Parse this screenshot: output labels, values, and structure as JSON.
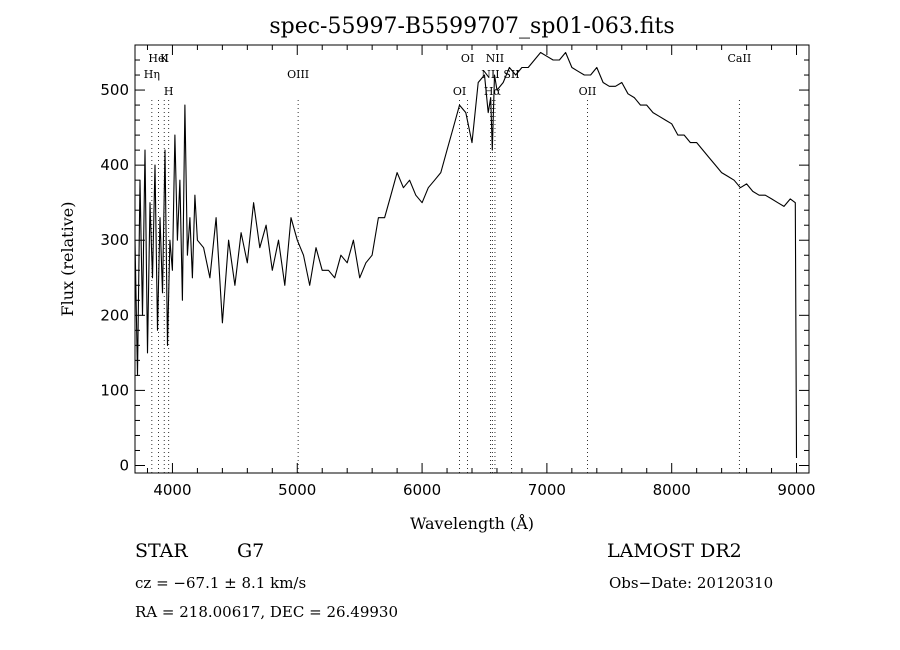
{
  "chart_data": {
    "type": "line",
    "title": "spec-55997-B5599707_sp01-063.fits",
    "xlabel": "Wavelength (Å)",
    "ylabel": "Flux (relative)",
    "xlim": [
      3700,
      9100
    ],
    "ylim": [
      -10,
      560
    ],
    "xticks": [
      4000,
      5000,
      6000,
      7000,
      8000,
      9000
    ],
    "yticks": [
      0,
      100,
      200,
      300,
      400,
      500
    ],
    "grid": false,
    "series": [
      {
        "x": [
          3700,
          3720,
          3740,
          3760,
          3780,
          3800,
          3820,
          3840,
          3860,
          3880,
          3900,
          3920,
          3940,
          3960,
          3980,
          4000,
          4020,
          4040,
          4060,
          4080,
          4100,
          4120,
          4140,
          4160,
          4180,
          4200,
          4250,
          4300,
          4350,
          4400,
          4450,
          4500,
          4550,
          4600,
          4650,
          4700,
          4750,
          4800,
          4850,
          4900,
          4950,
          5000,
          5050,
          5100,
          5150,
          5200,
          5250,
          5300,
          5350,
          5400,
          5450,
          5500,
          5550,
          5600,
          5650,
          5700,
          5750,
          5800,
          5850,
          5900,
          5950,
          6000,
          6050,
          6100,
          6150,
          6200,
          6250,
          6300,
          6350,
          6400,
          6450,
          6500,
          6530,
          6550,
          6563,
          6580,
          6600,
          6650,
          6700,
          6750,
          6800,
          6850,
          6900,
          6950,
          7000,
          7050,
          7100,
          7150,
          7200,
          7250,
          7300,
          7350,
          7400,
          7450,
          7500,
          7550,
          7600,
          7650,
          7700,
          7750,
          7800,
          7850,
          7900,
          7950,
          8000,
          8050,
          8100,
          8150,
          8200,
          8250,
          8300,
          8350,
          8400,
          8450,
          8500,
          8550,
          8600,
          8650,
          8700,
          8750,
          8800,
          8850,
          8900,
          8950,
          8990,
          9000
        ],
        "y": [
          300,
          120,
          380,
          200,
          420,
          150,
          350,
          250,
          400,
          180,
          330,
          230,
          420,
          160,
          300,
          260,
          440,
          300,
          380,
          220,
          480,
          280,
          330,
          250,
          360,
          300,
          290,
          250,
          330,
          190,
          300,
          240,
          310,
          270,
          350,
          290,
          320,
          260,
          300,
          240,
          330,
          300,
          280,
          240,
          290,
          260,
          260,
          250,
          280,
          270,
          300,
          250,
          270,
          280,
          330,
          330,
          360,
          390,
          370,
          380,
          360,
          350,
          370,
          380,
          390,
          420,
          450,
          480,
          470,
          430,
          510,
          520,
          470,
          490,
          420,
          520,
          500,
          510,
          530,
          520,
          530,
          530,
          540,
          550,
          545,
          540,
          540,
          550,
          530,
          525,
          520,
          520,
          530,
          510,
          505,
          505,
          510,
          495,
          490,
          480,
          480,
          470,
          465,
          460,
          455,
          440,
          440,
          430,
          430,
          420,
          410,
          400,
          390,
          385,
          380,
          370,
          375,
          365,
          360,
          360,
          355,
          350,
          345,
          355,
          350,
          10
        ]
      }
    ],
    "line_markers": [
      {
        "name": "HeI",
        "x": 3889
      },
      {
        "name": "Hη",
        "x": 3835
      },
      {
        "name": "H",
        "x": 3970
      },
      {
        "name": "K",
        "x": 3934
      },
      {
        "name": "OIII",
        "x": 5007
      },
      {
        "name": "OI",
        "x": 6300
      },
      {
        "name": "OI",
        "x": 6364
      },
      {
        "name": "NII",
        "x": 6548
      },
      {
        "name": "Hα",
        "x": 6563
      },
      {
        "name": "NII",
        "x": 6584
      },
      {
        "name": "SII",
        "x": 6716
      },
      {
        "name": "OII",
        "x": 7325
      },
      {
        "name": "CaII",
        "x": 8542
      }
    ]
  },
  "info": {
    "object_type": "STAR",
    "subclass": "G7",
    "survey": "LAMOST DR2",
    "cz": "cz = −67.1 ± 8.1 km/s",
    "obs_date": "Obs−Date: 20120310",
    "coords": "RA = 218.00617, DEC =  26.49930"
  }
}
